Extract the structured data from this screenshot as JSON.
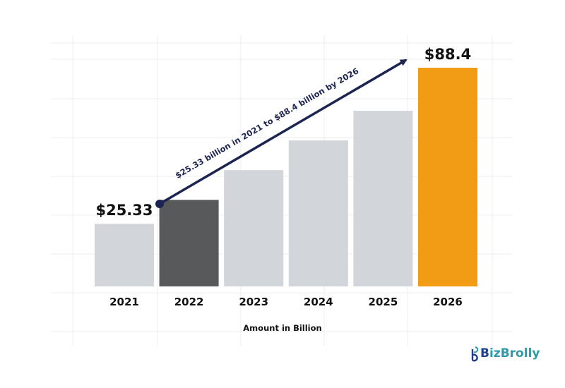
{
  "chart_data": {
    "type": "bar",
    "categories": [
      "2021",
      "2022",
      "2023",
      "2024",
      "2025",
      "2026"
    ],
    "values": [
      25.33,
      35,
      47,
      59,
      71,
      88.4
    ],
    "data_labels": {
      "2021": "$25.33",
      "2026": "$88.4"
    },
    "xlabel": "Amount in Billion",
    "ylim": [
      0,
      95
    ],
    "grid": true,
    "annotation": "$25.33 billion in 2021 to $88.4 billion by 2026",
    "colors": {
      "default": "#d2d5da",
      "2022": "#58595b",
      "2026": "#f29c15",
      "arrow": "#1c2451",
      "grid": "#ececec"
    }
  },
  "brand": {
    "logo_b": "B",
    "logo_rest": "izBrolly",
    "icon": "bizbrolly-logo-icon"
  }
}
